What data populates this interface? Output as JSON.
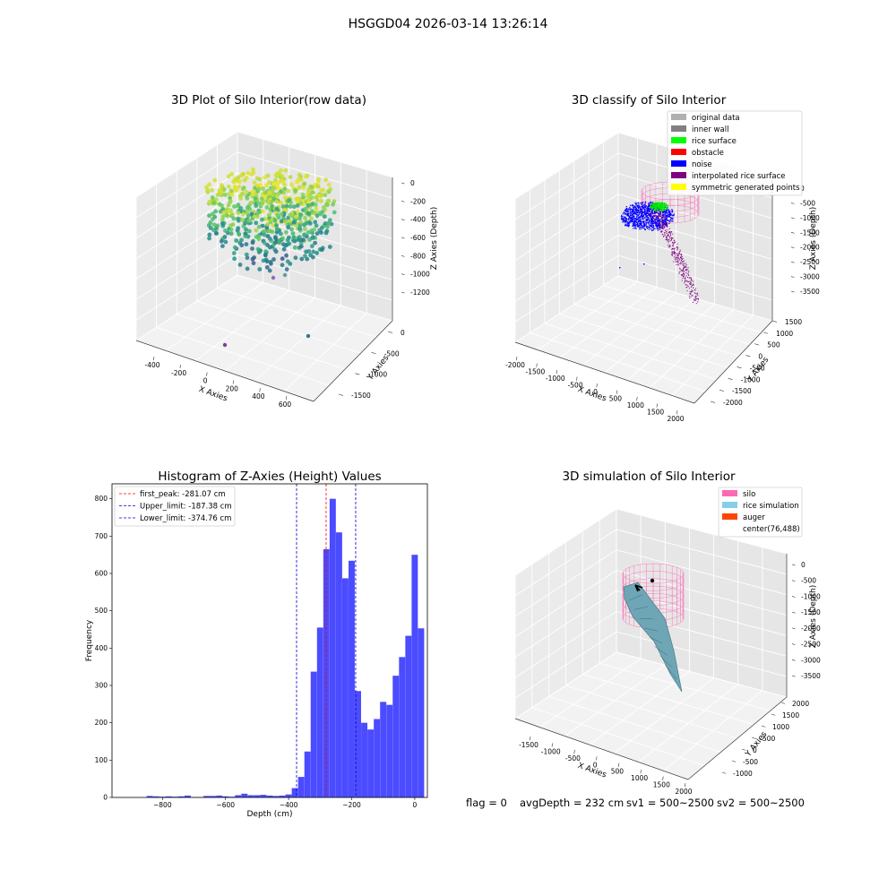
{
  "figure": {
    "suptitle": "HSGGD04 2026-03-14 13:26:14",
    "status": {
      "flag": "flag = 0",
      "avg_depth": "avgDepth = 232 cm",
      "sv1": "sv1 = 500~2500",
      "sv2": "sv2 = 500~2500"
    }
  },
  "chart_data": [
    {
      "id": "raw",
      "type": "scatter",
      "projection": "3d",
      "title": "3D Plot of Silo Interior(row data)",
      "xlabel": "X Axies",
      "ylabel": "Y Axies",
      "zlabel": "Z Axies (Depth)",
      "x_ticks": [
        "-400",
        "-200",
        "0",
        "200",
        "400",
        "600"
      ],
      "y_ticks": [
        "-1500",
        "-1000",
        "-500",
        "0"
      ],
      "z_ticks": [
        "0",
        "-200",
        "-400",
        "-600",
        "-800",
        "-1000",
        "-1200"
      ],
      "colormap": "viridis",
      "grid": true
    },
    {
      "id": "classify",
      "type": "scatter",
      "projection": "3d",
      "title": "3D classify of Silo Interior",
      "xlabel": "X Axies",
      "ylabel": "Y Axies",
      "zlabel": "Z Axies (Depth)",
      "x_ticks": [
        "-2000",
        "-1500",
        "-1000",
        "-500",
        "0",
        "500",
        "1000",
        "1500",
        "2000"
      ],
      "y_ticks": [
        "-2000",
        "-1500",
        "-1000",
        "-500",
        "0",
        "500",
        "1000",
        "1500"
      ],
      "z_ticks": [
        "0",
        "-500",
        "-1000",
        "-1500",
        "-2000",
        "-2500",
        "-3000",
        "-3500"
      ],
      "legend_position": "top-right",
      "legend": [
        {
          "label": "original data",
          "color": "#b0b0b0"
        },
        {
          "label": "inner wall",
          "color": "#808080"
        },
        {
          "label": "rice surface",
          "color": "#00ff00"
        },
        {
          "label": "obstacle",
          "color": "#ff0000"
        },
        {
          "label": "noise",
          "color": "#0000ff"
        },
        {
          "label": "interpolated rice surface",
          "color": "#800080"
        },
        {
          "label": "symmetric generated points",
          "color": "#ffff00"
        }
      ],
      "grid": true
    },
    {
      "id": "hist",
      "type": "bar",
      "title": "Histogram of Z-Axies (Height) Values",
      "xlabel": "Depth (cm)",
      "ylabel": "Frequency",
      "xlim": [
        -960,
        40
      ],
      "ylim": [
        0,
        840
      ],
      "x_ticks": [
        -800,
        -600,
        -400,
        -200,
        0
      ],
      "y_ticks": [
        0,
        100,
        200,
        300,
        400,
        500,
        600,
        700,
        800
      ],
      "bin_width": 20,
      "bar_color": "#4b4bff",
      "bins": [
        {
          "x0": -850,
          "count": 4
        },
        {
          "x0": -830,
          "count": 3
        },
        {
          "x0": -810,
          "count": 2
        },
        {
          "x0": -790,
          "count": 3
        },
        {
          "x0": -770,
          "count": 2
        },
        {
          "x0": -750,
          "count": 3
        },
        {
          "x0": -730,
          "count": 5
        },
        {
          "x0": -710,
          "count": 1
        },
        {
          "x0": -690,
          "count": 1
        },
        {
          "x0": -670,
          "count": 4
        },
        {
          "x0": -650,
          "count": 4
        },
        {
          "x0": -630,
          "count": 5
        },
        {
          "x0": -610,
          "count": 3
        },
        {
          "x0": -590,
          "count": 2
        },
        {
          "x0": -570,
          "count": 6
        },
        {
          "x0": -550,
          "count": 10
        },
        {
          "x0": -530,
          "count": 6
        },
        {
          "x0": -510,
          "count": 6
        },
        {
          "x0": -490,
          "count": 7
        },
        {
          "x0": -470,
          "count": 5
        },
        {
          "x0": -450,
          "count": 4
        },
        {
          "x0": -430,
          "count": 5
        },
        {
          "x0": -410,
          "count": 8
        },
        {
          "x0": -390,
          "count": 25
        },
        {
          "x0": -370,
          "count": 55
        },
        {
          "x0": -350,
          "count": 123
        },
        {
          "x0": -330,
          "count": 337
        },
        {
          "x0": -310,
          "count": 455
        },
        {
          "x0": -290,
          "count": 665
        },
        {
          "x0": -270,
          "count": 800
        },
        {
          "x0": -250,
          "count": 710
        },
        {
          "x0": -230,
          "count": 587
        },
        {
          "x0": -210,
          "count": 634
        },
        {
          "x0": -190,
          "count": 285
        },
        {
          "x0": -170,
          "count": 200
        },
        {
          "x0": -150,
          "count": 182
        },
        {
          "x0": -130,
          "count": 210
        },
        {
          "x0": -110,
          "count": 256
        },
        {
          "x0": -90,
          "count": 248
        },
        {
          "x0": -70,
          "count": 326
        },
        {
          "x0": -50,
          "count": 376
        },
        {
          "x0": -30,
          "count": 433
        },
        {
          "x0": -10,
          "count": 650
        },
        {
          "x0": 10,
          "count": 453
        }
      ],
      "vlines": [
        {
          "label": "first_peak: -281.07 cm",
          "x": -281.07,
          "color": "#ff0000"
        },
        {
          "label": "Upper_limit: -187.38 cm",
          "x": -187.38,
          "color": "#0000cc"
        },
        {
          "label": "Lower_limit: -374.76 cm",
          "x": -374.76,
          "color": "#0000cc"
        }
      ],
      "legend_position": "top-left"
    },
    {
      "id": "sim",
      "type": "surface",
      "projection": "3d",
      "title": "3D simulation of Silo Interior",
      "xlabel": "X Axies",
      "ylabel": "Y Axies",
      "zlabel": "Z Axies (Depth)",
      "x_ticks": [
        "-1500",
        "-1000",
        "-500",
        "0",
        "500",
        "1000",
        "1500",
        "2000"
      ],
      "y_ticks": [
        "-1000",
        "-500",
        "0",
        "500",
        "1000",
        "1500",
        "2000"
      ],
      "z_ticks": [
        "0",
        "-500",
        "-1000",
        "-1500",
        "-2000",
        "-2500",
        "-3000",
        "-3500"
      ],
      "legend_position": "top-right",
      "legend": [
        {
          "label": "silo",
          "color": "#ff69b4"
        },
        {
          "label": "rice simulation",
          "color": "#87ceeb"
        },
        {
          "label": "auger",
          "color": "#ff4500"
        },
        {
          "label": "center(76,488)",
          "color": ""
        }
      ],
      "grid": true
    }
  ]
}
